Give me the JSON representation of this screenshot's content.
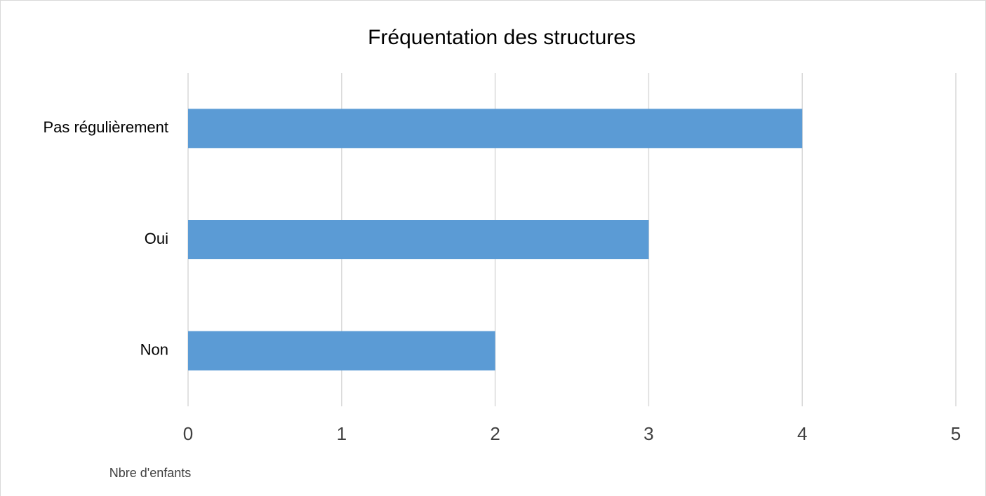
{
  "chart_data": {
    "type": "barh",
    "title": "Fréquentation des structures",
    "categories": [
      "Pas régulièrement",
      "Oui",
      "Non"
    ],
    "values": [
      4,
      3,
      2
    ],
    "color": "#5b9bd5",
    "xlim": [
      0,
      5
    ],
    "xticks": [
      0,
      1,
      2,
      3,
      4,
      5
    ],
    "grid": true,
    "xlabel": "Nbre d'enfants"
  }
}
